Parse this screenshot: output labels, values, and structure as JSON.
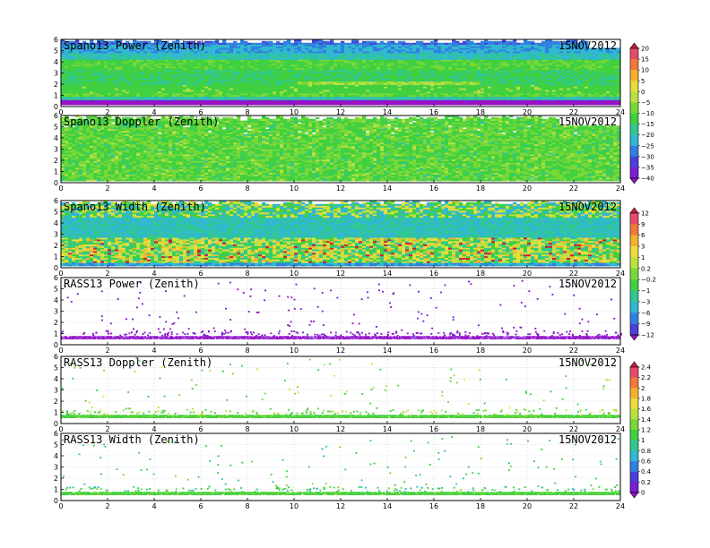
{
  "chart_data": [
    {
      "type": "heatmap",
      "title": "Spano13 Power (Zenith)",
      "date": "15NOV2012",
      "x_ticks": [
        "0",
        "2",
        "4",
        "6",
        "8",
        "10",
        "12",
        "14",
        "16",
        "18",
        "20",
        "22",
        "24"
      ],
      "y_ticks": [
        "0",
        "1",
        "2",
        "3",
        "4",
        "5",
        "6"
      ],
      "xlim": [
        0,
        24
      ],
      "ylim": [
        0,
        6
      ],
      "field": "power",
      "colorbar": "A"
    },
    {
      "type": "heatmap",
      "title": "Spano13 Doppler (Zenith)",
      "date": "15NOV2012",
      "x_ticks": [
        "0",
        "2",
        "4",
        "6",
        "8",
        "10",
        "12",
        "14",
        "16",
        "18",
        "20",
        "22",
        "24"
      ],
      "y_ticks": [
        "0",
        "1",
        "2",
        "3",
        "4",
        "5",
        "6"
      ],
      "xlim": [
        0,
        24
      ],
      "ylim": [
        0,
        6
      ],
      "field": "doppler",
      "colorbar": "A"
    },
    {
      "type": "heatmap",
      "title": "Spano13 Width (Zenith)",
      "date": "15NOV2012",
      "x_ticks": [
        "0",
        "2",
        "4",
        "6",
        "8",
        "10",
        "12",
        "14",
        "16",
        "18",
        "20",
        "22",
        "24"
      ],
      "y_ticks": [
        "0",
        "1",
        "2",
        "3",
        "4",
        "5",
        "6"
      ],
      "xlim": [
        0,
        24
      ],
      "ylim": [
        0,
        6
      ],
      "field": "width",
      "colorbar": "B"
    },
    {
      "type": "heatmap",
      "title": "RASS13 Power (Zenith)",
      "date": "15NOV2012",
      "x_ticks": [
        "0",
        "2",
        "4",
        "6",
        "8",
        "10",
        "12",
        "14",
        "16",
        "18",
        "20",
        "22",
        "24"
      ],
      "y_ticks": [
        "0",
        "1",
        "2",
        "3",
        "4",
        "5",
        "6"
      ],
      "xlim": [
        0,
        24
      ],
      "ylim": [
        0,
        6
      ],
      "field": "rass_power",
      "colorbar": "B"
    },
    {
      "type": "heatmap",
      "title": "RASS13 Doppler (Zenith)",
      "date": "15NOV2012",
      "x_ticks": [
        "0",
        "2",
        "4",
        "6",
        "8",
        "10",
        "12",
        "14",
        "16",
        "18",
        "20",
        "22",
        "24"
      ],
      "y_ticks": [
        "0",
        "1",
        "2",
        "3",
        "4",
        "5",
        "6"
      ],
      "xlim": [
        0,
        24
      ],
      "ylim": [
        0,
        6
      ],
      "field": "rass_doppler",
      "colorbar": "C"
    },
    {
      "type": "heatmap",
      "title": "RASS13 Width (Zenith)",
      "date": "15NOV2012",
      "x_ticks": [
        "0",
        "2",
        "4",
        "6",
        "8",
        "10",
        "12",
        "14",
        "16",
        "18",
        "20",
        "22",
        "24"
      ],
      "y_ticks": [
        "0",
        "1",
        "2",
        "3",
        "4",
        "5",
        "6"
      ],
      "xlim": [
        0,
        24
      ],
      "ylim": [
        0,
        6
      ],
      "field": "rass_width",
      "colorbar": "C"
    }
  ],
  "colorbars": {
    "A": {
      "labels": [
        "20",
        "15",
        "10",
        "5",
        "0",
        "−5",
        "−10",
        "−15",
        "−20",
        "−25",
        "−30",
        "−35",
        "−40"
      ],
      "colors": [
        "#d01c3c",
        "#e84a6e",
        "#f07a3a",
        "#f4b030",
        "#e8dc40",
        "#b8e040",
        "#78d838",
        "#40d040",
        "#30c890",
        "#30b8d0",
        "#3080e0",
        "#4a40d8",
        "#7a20d0",
        "#9a10c8"
      ]
    },
    "B": {
      "labels": [
        "12",
        "9",
        "6",
        "3",
        "1",
        "0.2",
        "−0.2",
        "−1",
        "−3",
        "−6",
        "−9",
        "−12"
      ],
      "colors": [
        "#d01c3c",
        "#e84a6e",
        "#f07a3a",
        "#f4b030",
        "#e8dc40",
        "#b8e040",
        "#78d838",
        "#40d040",
        "#30c890",
        "#30b8d0",
        "#3080e0",
        "#4a40d8",
        "#9a10c8"
      ]
    },
    "C": {
      "labels": [
        "2.4",
        "2.2",
        "2",
        "1.8",
        "1.6",
        "1.4",
        "1.2",
        "1",
        "0.8",
        "0.6",
        "0.4",
        "0.2",
        "0"
      ],
      "colors": [
        "#d01c3c",
        "#e84a6e",
        "#f07a3a",
        "#f4b030",
        "#e8dc40",
        "#b8e040",
        "#78d838",
        "#40d040",
        "#30c890",
        "#30b8d0",
        "#3080e0",
        "#4a40d8",
        "#7a20d0",
        "#9a10c8"
      ]
    }
  }
}
